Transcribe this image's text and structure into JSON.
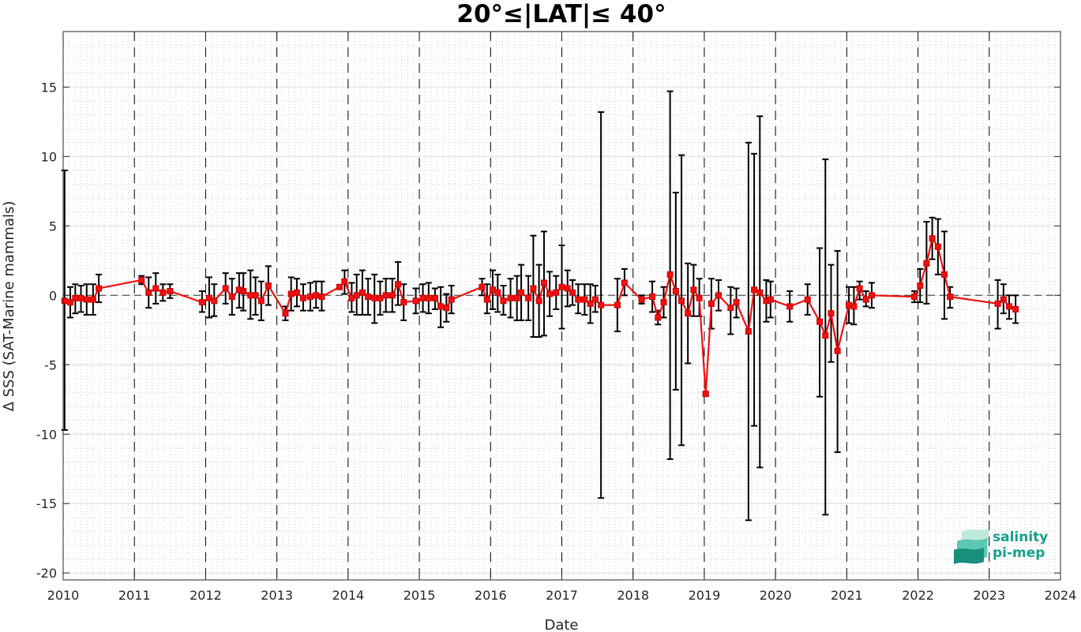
{
  "chart_data": {
    "type": "line",
    "title": "20°≤|LAT|≤ 40°",
    "xlabel": "Date",
    "ylabel": "Δ SSS (SAT-Marine mammals)",
    "x_ticks": [
      "2010",
      "2011",
      "2012",
      "2013",
      "2014",
      "2015",
      "2016",
      "2017",
      "2018",
      "2019",
      "2020",
      "2021",
      "2022",
      "2023",
      "2024"
    ],
    "y_ticks": [
      "15",
      "10",
      "5",
      "0",
      "-5",
      "-10",
      "-15",
      "-20"
    ],
    "xlim": [
      2010.0,
      2024.0
    ],
    "ylim": [
      -20.5,
      19.0
    ],
    "grid": true,
    "legend": "none",
    "error_bars": true,
    "colors": {
      "line": "#ee1111",
      "marker_edge": "#cc0000",
      "error_bar": "#000000",
      "zero_line": "#333333"
    },
    "series": [
      {
        "points": [
          {
            "x": 2010.02,
            "y": -0.4,
            "lo": -9.7,
            "hi": 9.0
          },
          {
            "x": 2010.1,
            "y": -0.5,
            "lo": -1.6,
            "hi": 0.6
          },
          {
            "x": 2010.17,
            "y": -0.2,
            "lo": -1.3,
            "hi": 0.8
          },
          {
            "x": 2010.25,
            "y": -0.2,
            "lo": -1.2,
            "hi": 0.7
          },
          {
            "x": 2010.33,
            "y": -0.3,
            "lo": -1.4,
            "hi": 0.8
          },
          {
            "x": 2010.42,
            "y": -0.3,
            "lo": -1.4,
            "hi": 0.8
          },
          {
            "x": 2010.5,
            "y": 0.5,
            "lo": -0.5,
            "hi": 1.5
          },
          {
            "x": 2011.1,
            "y": 1.1,
            "lo": 0.8,
            "hi": 1.4
          },
          {
            "x": 2011.2,
            "y": 0.2,
            "lo": -0.9,
            "hi": 1.3
          },
          {
            "x": 2011.3,
            "y": 0.5,
            "lo": -0.6,
            "hi": 1.6
          },
          {
            "x": 2011.4,
            "y": 0.2,
            "lo": -0.4,
            "hi": 0.8
          },
          {
            "x": 2011.5,
            "y": 0.3,
            "lo": -0.2,
            "hi": 0.8
          },
          {
            "x": 2011.95,
            "y": -0.5,
            "lo": -1.2,
            "hi": 0.3
          },
          {
            "x": 2012.05,
            "y": -0.2,
            "lo": -1.6,
            "hi": 1.3
          },
          {
            "x": 2012.12,
            "y": -0.4,
            "lo": -1.5,
            "hi": 0.8
          },
          {
            "x": 2012.28,
            "y": 0.5,
            "lo": -0.6,
            "hi": 1.6
          },
          {
            "x": 2012.37,
            "y": -0.1,
            "lo": -1.4,
            "hi": 1.2
          },
          {
            "x": 2012.47,
            "y": 0.4,
            "lo": -0.9,
            "hi": 1.6
          },
          {
            "x": 2012.53,
            "y": 0.3,
            "lo": -1.1,
            "hi": 1.6
          },
          {
            "x": 2012.63,
            "y": 0.0,
            "lo": -1.7,
            "hi": 1.8
          },
          {
            "x": 2012.7,
            "y": 0.0,
            "lo": -1.4,
            "hi": 1.3
          },
          {
            "x": 2012.78,
            "y": -0.4,
            "lo": -1.8,
            "hi": 1.0
          },
          {
            "x": 2012.88,
            "y": 0.7,
            "lo": -0.7,
            "hi": 2.1
          },
          {
            "x": 2013.12,
            "y": -1.3,
            "lo": -1.8,
            "hi": -0.8
          },
          {
            "x": 2013.2,
            "y": 0.1,
            "lo": -1.1,
            "hi": 1.3
          },
          {
            "x": 2013.28,
            "y": 0.2,
            "lo": -0.8,
            "hi": 1.2
          },
          {
            "x": 2013.37,
            "y": -0.2,
            "lo": -1.1,
            "hi": 0.8
          },
          {
            "x": 2013.47,
            "y": -0.1,
            "lo": -1.1,
            "hi": 0.9
          },
          {
            "x": 2013.55,
            "y": 0.0,
            "lo": -0.9,
            "hi": 1.0
          },
          {
            "x": 2013.63,
            "y": -0.1,
            "lo": -1.1,
            "hi": 1.0
          },
          {
            "x": 2013.88,
            "y": 0.6,
            "lo": 0.5,
            "hi": 0.7
          },
          {
            "x": 2013.95,
            "y": 1.0,
            "lo": 0.1,
            "hi": 1.8
          },
          {
            "x": 2014.05,
            "y": -0.2,
            "lo": -1.2,
            "hi": 0.9
          },
          {
            "x": 2014.12,
            "y": 0.0,
            "lo": -1.4,
            "hi": 1.5
          },
          {
            "x": 2014.2,
            "y": 0.2,
            "lo": -1.4,
            "hi": 1.8
          },
          {
            "x": 2014.28,
            "y": -0.1,
            "lo": -1.4,
            "hi": 1.2
          },
          {
            "x": 2014.37,
            "y": -0.2,
            "lo": -2.0,
            "hi": 1.5
          },
          {
            "x": 2014.45,
            "y": -0.2,
            "lo": -1.4,
            "hi": 1.0
          },
          {
            "x": 2014.53,
            "y": 0.0,
            "lo": -1.2,
            "hi": 1.2
          },
          {
            "x": 2014.62,
            "y": 0.0,
            "lo": -1.2,
            "hi": 1.2
          },
          {
            "x": 2014.7,
            "y": 0.8,
            "lo": -0.7,
            "hi": 2.4
          },
          {
            "x": 2014.78,
            "y": -0.5,
            "lo": -1.8,
            "hi": 0.8
          },
          {
            "x": 2014.95,
            "y": -0.4,
            "lo": -1.3,
            "hi": 0.5
          },
          {
            "x": 2015.05,
            "y": -0.2,
            "lo": -1.2,
            "hi": 0.8
          },
          {
            "x": 2015.13,
            "y": -0.2,
            "lo": -1.3,
            "hi": 0.9
          },
          {
            "x": 2015.22,
            "y": -0.2,
            "lo": -1.0,
            "hi": 0.5
          },
          {
            "x": 2015.3,
            "y": -0.8,
            "lo": -2.3,
            "hi": 0.6
          },
          {
            "x": 2015.38,
            "y": -0.9,
            "lo": -1.9,
            "hi": 0.1
          },
          {
            "x": 2015.45,
            "y": -0.3,
            "lo": -1.3,
            "hi": 0.7
          },
          {
            "x": 2015.88,
            "y": 0.6,
            "lo": 0.0,
            "hi": 1.2
          },
          {
            "x": 2015.95,
            "y": -0.3,
            "lo": -1.3,
            "hi": 0.8
          },
          {
            "x": 2016.03,
            "y": 0.4,
            "lo": -1.0,
            "hi": 1.8
          },
          {
            "x": 2016.1,
            "y": 0.2,
            "lo": -1.2,
            "hi": 1.5
          },
          {
            "x": 2016.18,
            "y": -0.4,
            "lo": -1.4,
            "hi": 0.7
          },
          {
            "x": 2016.28,
            "y": -0.2,
            "lo": -1.6,
            "hi": 1.2
          },
          {
            "x": 2016.37,
            "y": -0.2,
            "lo": -1.8,
            "hi": 1.4
          },
          {
            "x": 2016.43,
            "y": 0.2,
            "lo": -1.8,
            "hi": 2.2
          },
          {
            "x": 2016.53,
            "y": -0.2,
            "lo": -1.8,
            "hi": 1.4
          },
          {
            "x": 2016.6,
            "y": 0.5,
            "lo": -3.0,
            "hi": 4.3
          },
          {
            "x": 2016.68,
            "y": -0.4,
            "lo": -3.0,
            "hi": 2.2
          },
          {
            "x": 2016.75,
            "y": 0.9,
            "lo": -2.9,
            "hi": 4.6
          },
          {
            "x": 2016.83,
            "y": 0.1,
            "lo": -1.5,
            "hi": 1.7
          },
          {
            "x": 2016.92,
            "y": 0.2,
            "lo": -1.0,
            "hi": 1.4
          },
          {
            "x": 2017.0,
            "y": 0.6,
            "lo": -2.4,
            "hi": 3.6
          },
          {
            "x": 2017.08,
            "y": 0.5,
            "lo": -0.8,
            "hi": 1.8
          },
          {
            "x": 2017.15,
            "y": 0.2,
            "lo": -0.7,
            "hi": 1.1
          },
          {
            "x": 2017.23,
            "y": -0.3,
            "lo": -1.3,
            "hi": 0.8
          },
          {
            "x": 2017.32,
            "y": -0.3,
            "lo": -1.4,
            "hi": 0.8
          },
          {
            "x": 2017.4,
            "y": -0.6,
            "lo": -2.0,
            "hi": 0.8
          },
          {
            "x": 2017.47,
            "y": -0.3,
            "lo": -1.2,
            "hi": 0.7
          },
          {
            "x": 2017.55,
            "y": -0.7,
            "lo": -14.6,
            "hi": 13.2
          },
          {
            "x": 2017.78,
            "y": -0.7,
            "lo": -2.6,
            "hi": 1.2
          },
          {
            "x": 2017.88,
            "y": 0.9,
            "lo": 0.0,
            "hi": 1.9
          },
          {
            "x": 2018.12,
            "y": -0.3,
            "lo": -0.6,
            "hi": 0.0
          },
          {
            "x": 2018.27,
            "y": -0.1,
            "lo": -1.2,
            "hi": 1.0
          },
          {
            "x": 2018.35,
            "y": -1.6,
            "lo": -2.1,
            "hi": -1.1
          },
          {
            "x": 2018.43,
            "y": -0.5,
            "lo": -1.6,
            "hi": 0.6
          },
          {
            "x": 2018.52,
            "y": 1.5,
            "lo": -11.8,
            "hi": 14.7
          },
          {
            "x": 2018.6,
            "y": 0.3,
            "lo": -6.8,
            "hi": 7.4
          },
          {
            "x": 2018.68,
            "y": -0.4,
            "lo": -10.8,
            "hi": 10.1
          },
          {
            "x": 2018.77,
            "y": -1.3,
            "lo": -4.9,
            "hi": 2.3
          },
          {
            "x": 2018.85,
            "y": 0.4,
            "lo": -1.5,
            "hi": 2.2
          },
          {
            "x": 2018.93,
            "y": -0.2,
            "lo": -1.5,
            "hi": 1.2
          },
          {
            "x": 2019.02,
            "y": -7.1,
            "lo": -7.2,
            "hi": -7.0
          },
          {
            "x": 2019.1,
            "y": -0.6,
            "lo": -2.4,
            "hi": 1.2
          },
          {
            "x": 2019.2,
            "y": 0.0,
            "lo": -1.1,
            "hi": 1.1
          },
          {
            "x": 2019.37,
            "y": -0.9,
            "lo": -2.8,
            "hi": 0.6
          },
          {
            "x": 2019.45,
            "y": -0.5,
            "lo": -1.6,
            "hi": 0.5
          },
          {
            "x": 2019.62,
            "y": -2.6,
            "lo": -16.2,
            "hi": 11.0
          },
          {
            "x": 2019.7,
            "y": 0.4,
            "lo": -9.4,
            "hi": 10.2
          },
          {
            "x": 2019.78,
            "y": 0.2,
            "lo": -12.4,
            "hi": 12.9
          },
          {
            "x": 2019.87,
            "y": -0.4,
            "lo": -1.9,
            "hi": 1.1
          },
          {
            "x": 2019.93,
            "y": -0.3,
            "lo": -1.6,
            "hi": 1.0
          },
          {
            "x": 2020.2,
            "y": -0.8,
            "lo": -1.9,
            "hi": 0.3
          },
          {
            "x": 2020.45,
            "y": -0.3,
            "lo": -1.4,
            "hi": 0.8
          },
          {
            "x": 2020.62,
            "y": -1.9,
            "lo": -7.3,
            "hi": 3.4
          },
          {
            "x": 2020.7,
            "y": -2.9,
            "lo": -15.8,
            "hi": 9.8
          },
          {
            "x": 2020.78,
            "y": -1.3,
            "lo": -4.8,
            "hi": 2.2
          },
          {
            "x": 2020.87,
            "y": -4.0,
            "lo": -11.3,
            "hi": 3.2
          },
          {
            "x": 2021.03,
            "y": -0.7,
            "lo": -2.0,
            "hi": 0.6
          },
          {
            "x": 2021.1,
            "y": -0.8,
            "lo": -2.1,
            "hi": 0.6
          },
          {
            "x": 2021.18,
            "y": 0.5,
            "lo": -0.3,
            "hi": 1.0
          },
          {
            "x": 2021.27,
            "y": -0.3,
            "lo": -0.8,
            "hi": 0.3
          },
          {
            "x": 2021.35,
            "y": 0.0,
            "lo": -0.9,
            "hi": 0.9
          },
          {
            "x": 2021.95,
            "y": -0.1,
            "lo": -0.5,
            "hi": 0.3
          },
          {
            "x": 2022.03,
            "y": 0.7,
            "lo": -0.5,
            "hi": 1.9
          },
          {
            "x": 2022.12,
            "y": 2.3,
            "lo": -0.6,
            "hi": 5.3
          },
          {
            "x": 2022.2,
            "y": 4.1,
            "lo": 2.6,
            "hi": 5.6
          },
          {
            "x": 2022.28,
            "y": 3.5,
            "lo": 1.5,
            "hi": 5.5
          },
          {
            "x": 2022.37,
            "y": 1.5,
            "lo": -1.7,
            "hi": 4.6
          },
          {
            "x": 2022.45,
            "y": -0.1,
            "lo": -0.9,
            "hi": 0.6
          },
          {
            "x": 2023.12,
            "y": -0.6,
            "lo": -2.4,
            "hi": 1.1
          },
          {
            "x": 2023.2,
            "y": -0.3,
            "lo": -1.3,
            "hi": 0.8
          },
          {
            "x": 2023.28,
            "y": -0.8,
            "lo": -1.7,
            "hi": 0.0
          },
          {
            "x": 2023.37,
            "y": -1.0,
            "lo": -2.0,
            "hi": 0.0
          }
        ]
      }
    ]
  },
  "logo": {
    "line1": "salinity",
    "line2": "pi-mep",
    "colors": {
      "text": "#16a08a",
      "light": "#bfe8dc",
      "mid": "#5cc7b2",
      "dark": "#1a8f7c"
    }
  }
}
